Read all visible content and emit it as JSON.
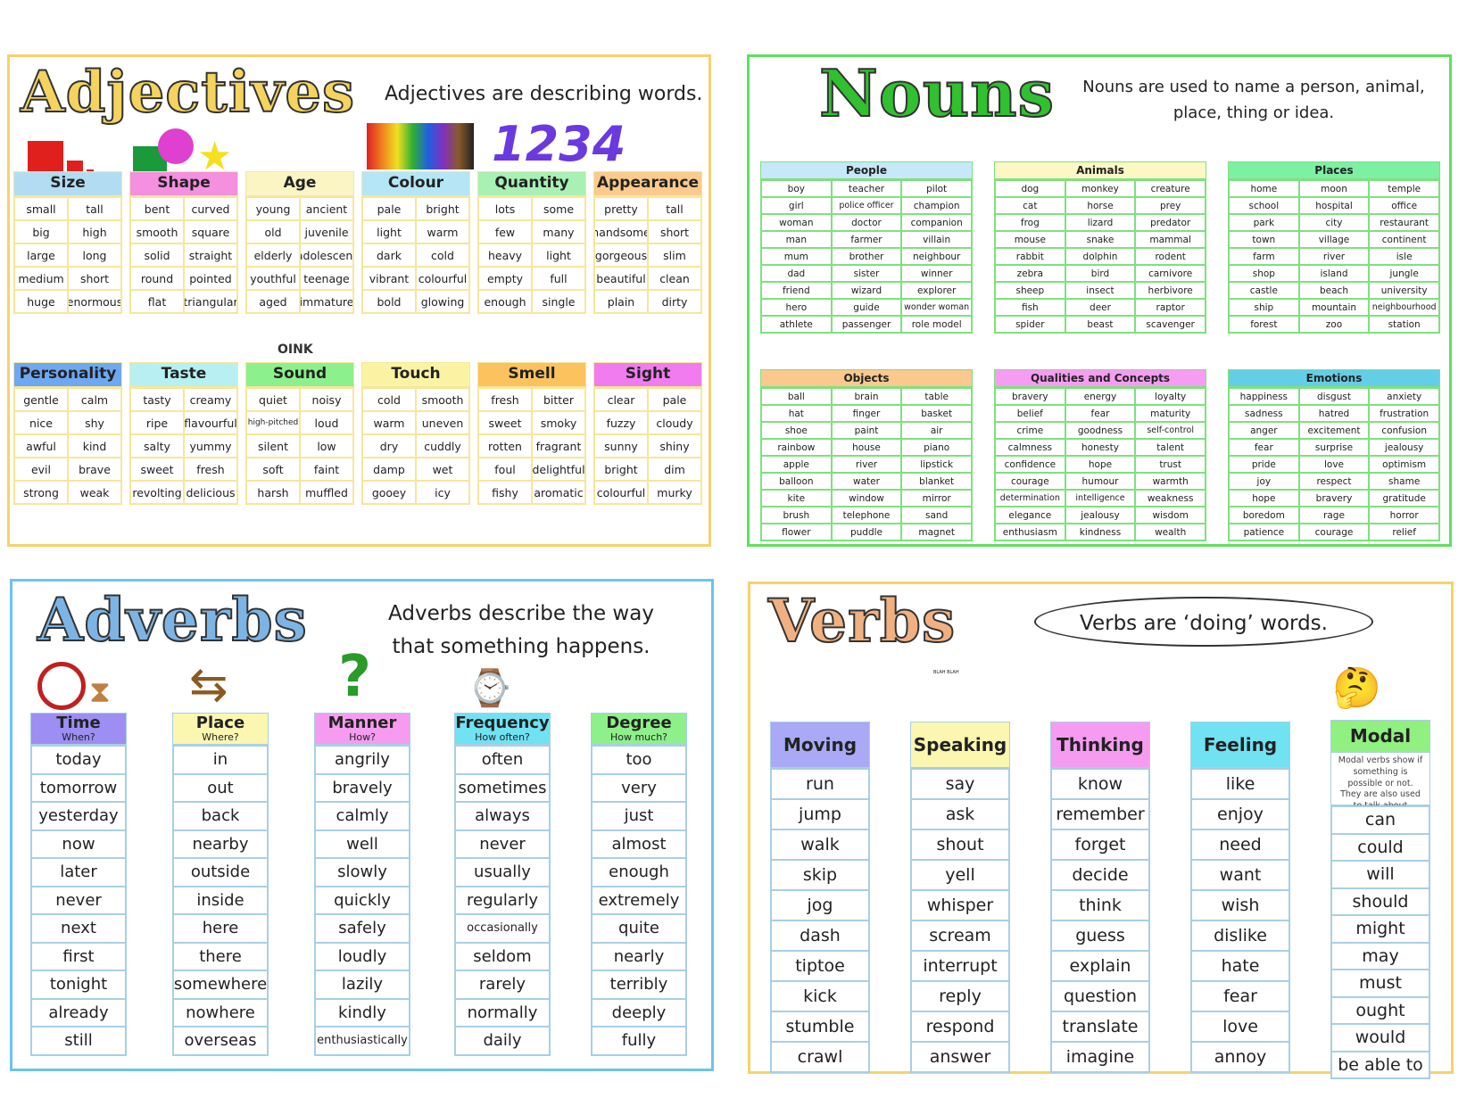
{
  "adjectives": {
    "title": "Adjectives",
    "description": "Adjectives are describing words.",
    "numbers_art": "1234",
    "sound_art": "OINK",
    "border": "#f5d36b",
    "categories": [
      {
        "name": "Size",
        "color": "#b2dcf2",
        "words": [
          [
            "small",
            "tall"
          ],
          [
            "big",
            "high"
          ],
          [
            "large",
            "long"
          ],
          [
            "medium",
            "short"
          ],
          [
            "huge",
            "enormous"
          ]
        ]
      },
      {
        "name": "Shape",
        "color": "#f58fe0",
        "words": [
          [
            "bent",
            "curved"
          ],
          [
            "smooth",
            "square"
          ],
          [
            "solid",
            "straight"
          ],
          [
            "round",
            "pointed"
          ],
          [
            "flat",
            "triangular"
          ]
        ]
      },
      {
        "name": "Age",
        "color": "#fbf5c4",
        "words": [
          [
            "young",
            "ancient"
          ],
          [
            "old",
            "juvenile"
          ],
          [
            "elderly",
            "adolescent"
          ],
          [
            "youthful",
            "teenage"
          ],
          [
            "aged",
            "immature"
          ]
        ]
      },
      {
        "name": "Colour",
        "color": "#b4e6f6",
        "words": [
          [
            "pale",
            "bright"
          ],
          [
            "light",
            "warm"
          ],
          [
            "dark",
            "cold"
          ],
          [
            "vibrant",
            "colourful"
          ],
          [
            "bold",
            "glowing"
          ]
        ]
      },
      {
        "name": "Quantity",
        "color": "#a8f0b4",
        "words": [
          [
            "lots",
            "some"
          ],
          [
            "few",
            "many"
          ],
          [
            "heavy",
            "light"
          ],
          [
            "empty",
            "full"
          ],
          [
            "enough",
            "single"
          ]
        ]
      },
      {
        "name": "Appearance",
        "color": "#fbca8c",
        "words": [
          [
            "pretty",
            "tall"
          ],
          [
            "handsome",
            "short"
          ],
          [
            "gorgeous",
            "slim"
          ],
          [
            "beautiful",
            "clean"
          ],
          [
            "plain",
            "dirty"
          ]
        ]
      },
      {
        "name": "Personality",
        "color": "#6ea8f0",
        "words": [
          [
            "gentle",
            "calm"
          ],
          [
            "nice",
            "shy"
          ],
          [
            "awful",
            "kind"
          ],
          [
            "evil",
            "brave"
          ],
          [
            "strong",
            "weak"
          ]
        ]
      },
      {
        "name": "Taste",
        "color": "#b8f0f2",
        "words": [
          [
            "tasty",
            "creamy"
          ],
          [
            "ripe",
            "flavourful"
          ],
          [
            "salty",
            "yummy"
          ],
          [
            "sweet",
            "fresh"
          ],
          [
            "revolting",
            "delicious"
          ]
        ]
      },
      {
        "name": "Sound",
        "color": "#8cf08c",
        "words": [
          [
            "quiet",
            "noisy"
          ],
          [
            "high-pitched",
            "loud"
          ],
          [
            "silent",
            "low"
          ],
          [
            "soft",
            "faint"
          ],
          [
            "harsh",
            "muffled"
          ]
        ]
      },
      {
        "name": "Touch",
        "color": "#fbf3a4",
        "words": [
          [
            "cold",
            "smooth"
          ],
          [
            "warm",
            "uneven"
          ],
          [
            "dry",
            "cuddly"
          ],
          [
            "damp",
            "wet"
          ],
          [
            "gooey",
            "icy"
          ]
        ]
      },
      {
        "name": "Smell",
        "color": "#fbc25e",
        "words": [
          [
            "fresh",
            "bitter"
          ],
          [
            "sweet",
            "smoky"
          ],
          [
            "rotten",
            "fragrant"
          ],
          [
            "foul",
            "delightful"
          ],
          [
            "fishy",
            "aromatic"
          ]
        ]
      },
      {
        "name": "Sight",
        "color": "#f07cf0",
        "words": [
          [
            "clear",
            "pale"
          ],
          [
            "fuzzy",
            "cloudy"
          ],
          [
            "sunny",
            "shiny"
          ],
          [
            "bright",
            "dim"
          ],
          [
            "colourful",
            "murky"
          ]
        ]
      }
    ]
  },
  "nouns": {
    "title": "Nouns",
    "description": "Nouns are used to name a person, animal, place, thing or idea.",
    "border": "#5fe05f",
    "categories": [
      {
        "name": "People",
        "color": "#c6e8f8",
        "words": [
          [
            "boy",
            "teacher",
            "pilot"
          ],
          [
            "girl",
            "police officer",
            "champion"
          ],
          [
            "woman",
            "doctor",
            "companion"
          ],
          [
            "man",
            "farmer",
            "villain"
          ],
          [
            "mum",
            "brother",
            "neighbour"
          ],
          [
            "dad",
            "sister",
            "winner"
          ],
          [
            "friend",
            "wizard",
            "explorer"
          ],
          [
            "hero",
            "guide",
            "wonder woman"
          ],
          [
            "athlete",
            "passenger",
            "role model"
          ]
        ]
      },
      {
        "name": "Animals",
        "color": "#fbf8c4",
        "words": [
          [
            "dog",
            "monkey",
            "creature"
          ],
          [
            "cat",
            "horse",
            "prey"
          ],
          [
            "frog",
            "lizard",
            "predator"
          ],
          [
            "mouse",
            "snake",
            "mammal"
          ],
          [
            "rabbit",
            "dolphin",
            "rodent"
          ],
          [
            "zebra",
            "bird",
            "carnivore"
          ],
          [
            "sheep",
            "insect",
            "herbivore"
          ],
          [
            "fish",
            "deer",
            "raptor"
          ],
          [
            "spider",
            "beast",
            "scavenger"
          ]
        ]
      },
      {
        "name": "Places",
        "color": "#7ef0a4",
        "words": [
          [
            "home",
            "moon",
            "temple"
          ],
          [
            "school",
            "hospital",
            "office"
          ],
          [
            "park",
            "city",
            "restaurant"
          ],
          [
            "town",
            "village",
            "continent"
          ],
          [
            "farm",
            "river",
            "isle"
          ],
          [
            "shop",
            "island",
            "jungle"
          ],
          [
            "castle",
            "beach",
            "university"
          ],
          [
            "ship",
            "mountain",
            "neighbourhood"
          ],
          [
            "forest",
            "zoo",
            "station"
          ]
        ]
      },
      {
        "name": "Objects",
        "color": "#fbc88e",
        "words": [
          [
            "ball",
            "brain",
            "table"
          ],
          [
            "hat",
            "finger",
            "basket"
          ],
          [
            "shoe",
            "paint",
            "air"
          ],
          [
            "rainbow",
            "house",
            "piano"
          ],
          [
            "apple",
            "river",
            "lipstick"
          ],
          [
            "balloon",
            "water",
            "blanket"
          ],
          [
            "kite",
            "window",
            "mirror"
          ],
          [
            "brush",
            "telephone",
            "sand"
          ],
          [
            "flower",
            "puddle",
            "magnet"
          ]
        ]
      },
      {
        "name": "Qualities and Concepts",
        "color": "#f79cf3",
        "words": [
          [
            "bravery",
            "energy",
            "loyalty"
          ],
          [
            "belief",
            "fear",
            "maturity"
          ],
          [
            "crime",
            "goodness",
            "self-control"
          ],
          [
            "calmness",
            "honesty",
            "talent"
          ],
          [
            "confidence",
            "hope",
            "trust"
          ],
          [
            "courage",
            "humour",
            "warmth"
          ],
          [
            "determination",
            "intelligence",
            "weakness"
          ],
          [
            "elegance",
            "jealousy",
            "wisdom"
          ],
          [
            "enthusiasm",
            "kindness",
            "wealth"
          ]
        ]
      },
      {
        "name": "Emotions",
        "color": "#62cfe6",
        "words": [
          [
            "happiness",
            "disgust",
            "anxiety"
          ],
          [
            "sadness",
            "hatred",
            "frustration"
          ],
          [
            "anger",
            "excitement",
            "confusion"
          ],
          [
            "fear",
            "surprise",
            "jealousy"
          ],
          [
            "pride",
            "love",
            "optimism"
          ],
          [
            "joy",
            "respect",
            "shame"
          ],
          [
            "hope",
            "bravery",
            "gratitude"
          ],
          [
            "boredom",
            "rage",
            "horror"
          ],
          [
            "patience",
            "courage",
            "relief"
          ]
        ]
      }
    ]
  },
  "adverbs": {
    "title": "Adverbs",
    "description": "Adverbs describe the way that something happens.",
    "border": "#6cc4ec",
    "categories": [
      {
        "name": "Time",
        "question": "When?",
        "color": "#9c8ef2",
        "words": [
          "today",
          "tomorrow",
          "yesterday",
          "now",
          "later",
          "never",
          "next",
          "first",
          "tonight",
          "already",
          "still"
        ]
      },
      {
        "name": "Place",
        "question": "Where?",
        "color": "#fbf6b0",
        "words": [
          "in",
          "out",
          "back",
          "nearby",
          "outside",
          "inside",
          "here",
          "there",
          "somewhere",
          "nowhere",
          "overseas"
        ]
      },
      {
        "name": "Manner",
        "question": "How?",
        "color": "#f59cf0",
        "words": [
          "angrily",
          "bravely",
          "calmly",
          "well",
          "slowly",
          "quickly",
          "safely",
          "loudly",
          "lazily",
          "kindly",
          "enthusiastically"
        ]
      },
      {
        "name": "Frequency",
        "question": "How often?",
        "color": "#70e2f2",
        "words": [
          "often",
          "sometimes",
          "always",
          "never",
          "usually",
          "regularly",
          "occasionally",
          "seldom",
          "rarely",
          "normally",
          "daily"
        ]
      },
      {
        "name": "Degree",
        "question": "How much?",
        "color": "#8ef08a",
        "words": [
          "too",
          "very",
          "just",
          "almost",
          "enough",
          "extremely",
          "quite",
          "nearly",
          "terribly",
          "deeply",
          "fully"
        ]
      }
    ]
  },
  "verbs": {
    "title": "Verbs",
    "description": "Verbs are ‘doing’ words.",
    "speech_art": "BLAH BLAH",
    "border": "#f5d36b",
    "categories": [
      {
        "name": "Moving",
        "color": "#a9a9f6",
        "words": [
          "run",
          "jump",
          "walk",
          "skip",
          "jog",
          "dash",
          "tiptoe",
          "kick",
          "stumble",
          "crawl"
        ]
      },
      {
        "name": "Speaking",
        "color": "#fbf6b0",
        "words": [
          "say",
          "ask",
          "shout",
          "yell",
          "whisper",
          "scream",
          "interrupt",
          "reply",
          "respond",
          "answer"
        ]
      },
      {
        "name": "Thinking",
        "color": "#f59cf0",
        "words": [
          "know",
          "remember",
          "forget",
          "decide",
          "think",
          "guess",
          "explain",
          "question",
          "translate",
          "imagine"
        ]
      },
      {
        "name": "Feeling",
        "color": "#70e2f2",
        "words": [
          "like",
          "enjoy",
          "need",
          "want",
          "wish",
          "dislike",
          "hate",
          "fear",
          "love",
          "annoy"
        ]
      },
      {
        "name": "Modal",
        "color": "#90f080",
        "note": "Modal verbs show if something is possible or not. They are also used to talk about permission.",
        "words": [
          "can",
          "could",
          "will",
          "should",
          "might",
          "may",
          "must",
          "ought",
          "would",
          "be able to"
        ]
      }
    ]
  }
}
